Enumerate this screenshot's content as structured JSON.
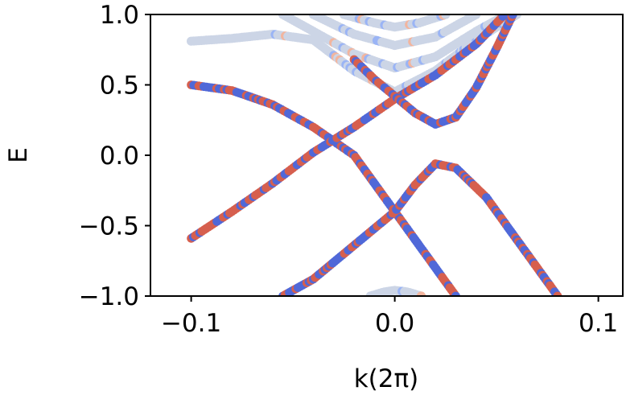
{
  "chart_data": {
    "type": "scatter",
    "title": "",
    "xlabel": "k(2π)",
    "ylabel": "E",
    "xlim": [
      -0.12,
      0.112
    ],
    "ylim": [
      -1.0,
      1.0
    ],
    "x_ticks": [
      -0.1,
      0.0,
      0.1
    ],
    "x_tick_labels": [
      "−0.1",
      "0.0",
      "0.1"
    ],
    "y_ticks": [
      -1.0,
      -0.5,
      0.0,
      0.5,
      1.0
    ],
    "y_tick_labels": [
      "−1.0",
      "−0.5",
      "0.0",
      "0.5",
      "1.0"
    ],
    "grid": false,
    "legend": "none",
    "colormap": "coolwarm",
    "colors": {
      "red": "#d65f4e",
      "blue": "#5068d8",
      "neutral": "#ccd5e6",
      "light_blue": "#9ab4f5",
      "light_red": "#f2b59e"
    },
    "series": [
      {
        "name": "band-down-mixed",
        "style": "mixed",
        "x": [
          -0.1,
          -0.08,
          -0.06,
          -0.04,
          -0.02,
          0.0,
          0.01,
          0.03
        ],
        "y": [
          0.5,
          0.46,
          0.36,
          0.2,
          0.0,
          -0.4,
          -0.6,
          -1.0
        ]
      },
      {
        "name": "band-up-mixed",
        "style": "mixed",
        "x": [
          -0.1,
          -0.08,
          -0.06,
          -0.04,
          -0.02,
          0.0,
          0.02,
          0.04,
          0.054
        ],
        "y": [
          -0.59,
          -0.4,
          -0.2,
          0.02,
          0.2,
          0.4,
          0.57,
          0.79,
          1.0
        ]
      },
      {
        "name": "conduction-valley",
        "style": "mixed",
        "x": [
          -0.02,
          -0.01,
          0.0,
          0.01,
          0.02,
          0.03,
          0.04,
          0.05,
          0.058
        ],
        "y": [
          0.68,
          0.54,
          0.42,
          0.3,
          0.22,
          0.27,
          0.48,
          0.76,
          1.0
        ]
      },
      {
        "name": "valence-peak",
        "style": "mixed",
        "x": [
          -0.055,
          -0.04,
          -0.02,
          0.0,
          0.01,
          0.02,
          0.03,
          0.045,
          0.06,
          0.08
        ],
        "y": [
          -1.0,
          -0.88,
          -0.64,
          -0.4,
          -0.21,
          -0.06,
          -0.09,
          -0.3,
          -0.6,
          -1.0
        ]
      },
      {
        "name": "upper-band-1",
        "style": "neutral",
        "x": [
          -0.1,
          -0.08,
          -0.06,
          -0.04,
          -0.02,
          0.0,
          0.02,
          0.04,
          0.06
        ],
        "y": [
          0.81,
          0.83,
          0.86,
          0.82,
          0.6,
          0.45,
          0.6,
          0.82,
          1.0
        ]
      },
      {
        "name": "upper-band-2",
        "style": "neutral",
        "x": [
          -0.055,
          -0.04,
          -0.02,
          0.0,
          0.02,
          0.04,
          0.055
        ],
        "y": [
          1.0,
          0.88,
          0.72,
          0.62,
          0.7,
          0.88,
          1.0
        ]
      },
      {
        "name": "upper-band-3",
        "style": "neutral",
        "x": [
          -0.04,
          -0.02,
          0.0,
          0.02,
          0.04
        ],
        "y": [
          1.0,
          0.86,
          0.78,
          0.84,
          1.0
        ]
      },
      {
        "name": "upper-band-4",
        "style": "neutral",
        "x": [
          -0.025,
          -0.01,
          0.0,
          0.012,
          0.025
        ],
        "y": [
          1.0,
          0.94,
          0.91,
          0.94,
          1.0
        ]
      },
      {
        "name": "lower-band",
        "style": "neutral",
        "x": [
          -0.012,
          -0.005,
          0.0,
          0.006,
          0.013
        ],
        "y": [
          -1.0,
          -0.97,
          -0.96,
          -0.97,
          -1.0
        ]
      }
    ]
  }
}
